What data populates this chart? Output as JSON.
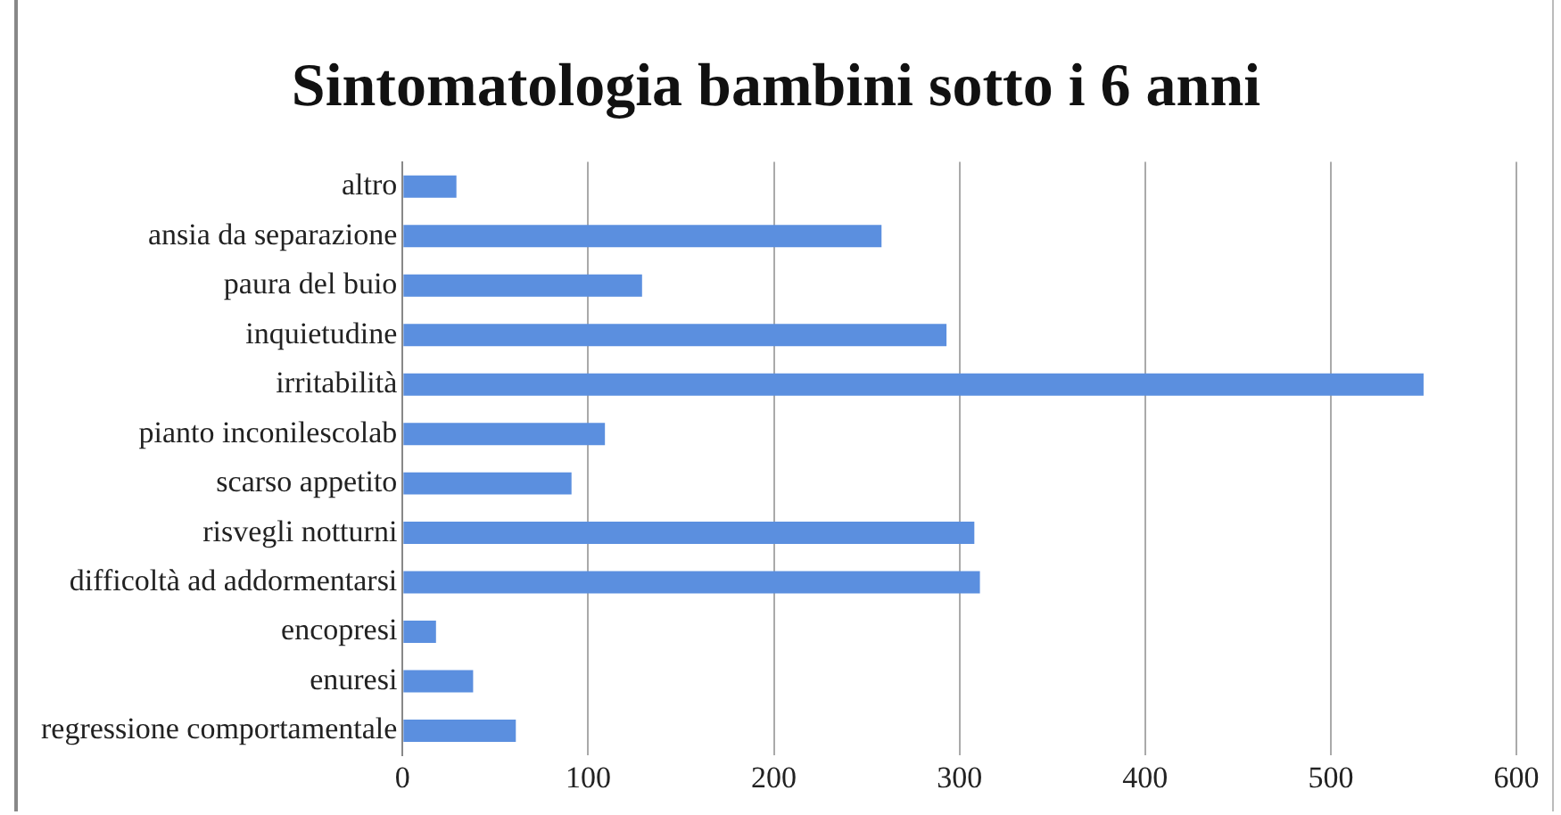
{
  "chart_data": {
    "type": "bar",
    "orientation": "horizontal",
    "title": "Sintomatologia bambini sotto i 6 anni",
    "categories": [
      "altro",
      "ansia da separazione",
      "paura del buio",
      "inquietudine",
      "irritabilità",
      "pianto inconilescolab",
      "scarso appetito",
      "risvegli notturni",
      "difficoltà ad addormentarsi",
      "encopresi",
      "enuresi",
      "regressione comportamentale"
    ],
    "values": [
      29,
      258,
      129,
      293,
      550,
      109,
      91,
      308,
      311,
      18,
      38,
      61
    ],
    "color": "#5b8fdf",
    "xlim": [
      0,
      600
    ],
    "xticks": [
      0,
      100,
      200,
      300,
      400,
      500,
      600
    ],
    "grid": "x",
    "legend": false
  }
}
